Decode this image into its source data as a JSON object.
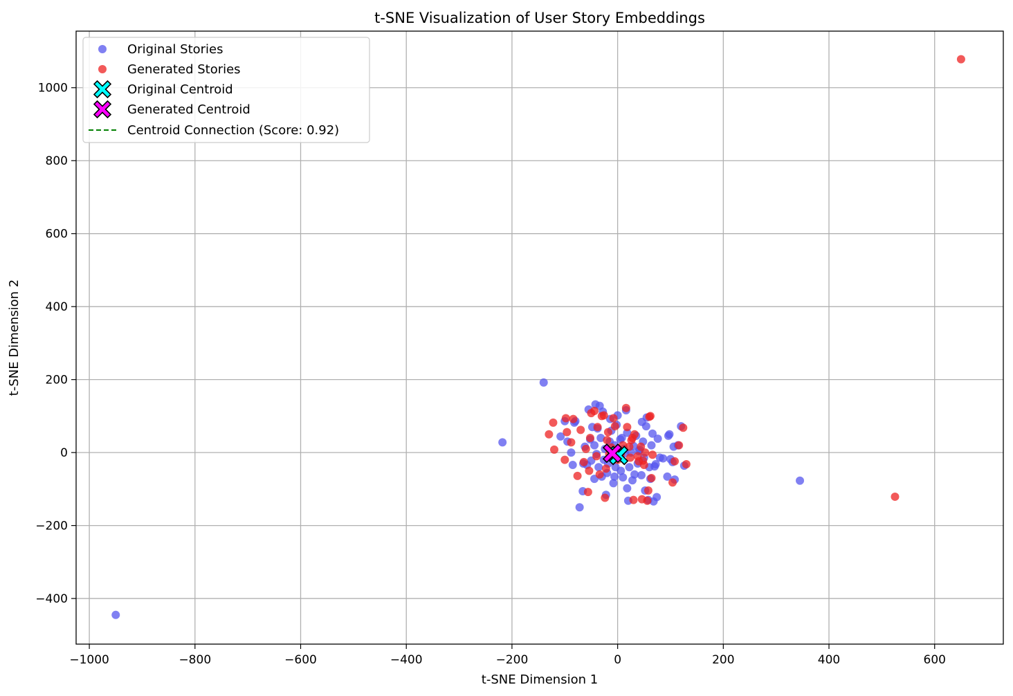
{
  "chart_data": {
    "type": "scatter",
    "title": "t-SNE Visualization of User Story Embeddings",
    "xlabel": "t-SNE Dimension 1",
    "ylabel": "t-SNE Dimension 2",
    "xlim": [
      -1025,
      730
    ],
    "ylim": [
      -525,
      1155
    ],
    "xticks": [
      -1000,
      -800,
      -600,
      -400,
      -200,
      0,
      200,
      400,
      600
    ],
    "yticks": [
      -400,
      -200,
      0,
      200,
      400,
      600,
      800,
      1000
    ],
    "xtick_labels": [
      "−1000",
      "−800",
      "−600",
      "−400",
      "−200",
      "0",
      "200",
      "400",
      "600"
    ],
    "ytick_labels": [
      "−400",
      "−200",
      "0",
      "200",
      "400",
      "600",
      "800",
      "1000"
    ],
    "grid": true,
    "legend_position": "top-left",
    "colors": {
      "original": "#5555ee",
      "generated": "#ee2222",
      "original_centroid": "#00ffff",
      "generated_centroid": "#ff00ff",
      "connection": "#008000"
    },
    "series": [
      {
        "name": "Original Stories",
        "marker": "circle",
        "points": [
          [
            -950,
            -445
          ],
          [
            -218,
            28
          ],
          [
            -140,
            192
          ],
          [
            345,
            -77
          ],
          [
            -108,
            44
          ],
          [
            -100,
            86
          ],
          [
            -95,
            30
          ],
          [
            -88,
            0
          ],
          [
            -85,
            -34
          ],
          [
            -82,
            82
          ],
          [
            -72,
            -150
          ],
          [
            -66,
            -106
          ],
          [
            -62,
            16
          ],
          [
            -58,
            -34
          ],
          [
            -55,
            118
          ],
          [
            -50,
            -22
          ],
          [
            -48,
            70
          ],
          [
            -44,
            20
          ],
          [
            -44,
            -72
          ],
          [
            -42,
            132
          ],
          [
            -40,
            -4
          ],
          [
            -38,
            66
          ],
          [
            -36,
            -40
          ],
          [
            -34,
            128
          ],
          [
            -32,
            40
          ],
          [
            -30,
            -66
          ],
          [
            -28,
            112
          ],
          [
            -26,
            -20
          ],
          [
            -24,
            10
          ],
          [
            -22,
            -116
          ],
          [
            -20,
            -56
          ],
          [
            -18,
            -30
          ],
          [
            -15,
            30
          ],
          [
            -12,
            60
          ],
          [
            -10,
            -8
          ],
          [
            -8,
            -84
          ],
          [
            -6,
            20
          ],
          [
            -4,
            -40
          ],
          [
            -2,
            76
          ],
          [
            0,
            102
          ],
          [
            2,
            -10
          ],
          [
            5,
            36
          ],
          [
            6,
            -50
          ],
          [
            8,
            40
          ],
          [
            10,
            -68
          ],
          [
            12,
            10
          ],
          [
            14,
            -2
          ],
          [
            16,
            116
          ],
          [
            18,
            -98
          ],
          [
            20,
            -132
          ],
          [
            22,
            -40
          ],
          [
            25,
            0
          ],
          [
            28,
            -76
          ],
          [
            30,
            18
          ],
          [
            32,
            -60
          ],
          [
            35,
            46
          ],
          [
            38,
            -30
          ],
          [
            40,
            4
          ],
          [
            42,
            8
          ],
          [
            45,
            -62
          ],
          [
            46,
            84
          ],
          [
            48,
            30
          ],
          [
            50,
            -14
          ],
          [
            52,
            -104
          ],
          [
            54,
            72
          ],
          [
            55,
            96
          ],
          [
            58,
            -130
          ],
          [
            60,
            -40
          ],
          [
            62,
            -72
          ],
          [
            64,
            20
          ],
          [
            66,
            52
          ],
          [
            68,
            -134
          ],
          [
            70,
            -38
          ],
          [
            72,
            -32
          ],
          [
            74,
            -122
          ],
          [
            76,
            38
          ],
          [
            80,
            -14
          ],
          [
            86,
            -16
          ],
          [
            94,
            -66
          ],
          [
            96,
            46
          ],
          [
            98,
            50
          ],
          [
            100,
            -18
          ],
          [
            104,
            -26
          ],
          [
            106,
            16
          ],
          [
            108,
            -74
          ],
          [
            114,
            20
          ],
          [
            120,
            72
          ],
          [
            126,
            -36
          ],
          [
            -65,
            -30
          ],
          [
            -52,
            36
          ],
          [
            -6,
            -66
          ],
          [
            18,
            54
          ],
          [
            -80,
            86
          ],
          [
            -14,
            92
          ]
        ]
      },
      {
        "name": "Generated Stories",
        "marker": "circle",
        "points": [
          [
            650,
            1078
          ],
          [
            525,
            -121
          ],
          [
            -130,
            50
          ],
          [
            -122,
            82
          ],
          [
            -120,
            8
          ],
          [
            -100,
            -20
          ],
          [
            -98,
            94
          ],
          [
            -96,
            56
          ],
          [
            -88,
            28
          ],
          [
            -84,
            92
          ],
          [
            -76,
            -64
          ],
          [
            -70,
            62
          ],
          [
            -64,
            -26
          ],
          [
            -60,
            10
          ],
          [
            -56,
            -108
          ],
          [
            -54,
            -50
          ],
          [
            -52,
            40
          ],
          [
            -50,
            108
          ],
          [
            -44,
            114
          ],
          [
            -38,
            70
          ],
          [
            -34,
            -60
          ],
          [
            -30,
            100
          ],
          [
            -26,
            102
          ],
          [
            -24,
            -124
          ],
          [
            -22,
            -44
          ],
          [
            -20,
            34
          ],
          [
            -18,
            56
          ],
          [
            -16,
            -4
          ],
          [
            -12,
            14
          ],
          [
            -8,
            94
          ],
          [
            -5,
            72
          ],
          [
            0,
            -20
          ],
          [
            5,
            0
          ],
          [
            10,
            20
          ],
          [
            16,
            122
          ],
          [
            18,
            70
          ],
          [
            22,
            16
          ],
          [
            24,
            -14
          ],
          [
            26,
            34
          ],
          [
            28,
            40
          ],
          [
            30,
            -130
          ],
          [
            32,
            50
          ],
          [
            38,
            -10
          ],
          [
            40,
            -24
          ],
          [
            44,
            16
          ],
          [
            46,
            -128
          ],
          [
            48,
            -22
          ],
          [
            50,
            -34
          ],
          [
            52,
            0
          ],
          [
            56,
            -132
          ],
          [
            58,
            -104
          ],
          [
            60,
            98
          ],
          [
            62,
            100
          ],
          [
            64,
            -70
          ],
          [
            66,
            -6
          ],
          [
            104,
            -82
          ],
          [
            108,
            -24
          ],
          [
            116,
            20
          ],
          [
            124,
            68
          ],
          [
            130,
            -32
          ],
          [
            6,
            -4
          ],
          [
            -40,
            -10
          ]
        ]
      }
    ],
    "centroids": [
      {
        "name": "Original Centroid",
        "x": 2,
        "y": -8
      },
      {
        "name": "Generated Centroid",
        "x": -10,
        "y": -2
      }
    ],
    "connection": {
      "name": "Centroid Connection (Score: 0.92)",
      "from": [
        2,
        -8
      ],
      "to": [
        -10,
        -2
      ]
    },
    "legend": [
      "Original Stories",
      "Generated Stories",
      "Original Centroid",
      "Generated Centroid",
      "Centroid Connection (Score: 0.92)"
    ]
  }
}
